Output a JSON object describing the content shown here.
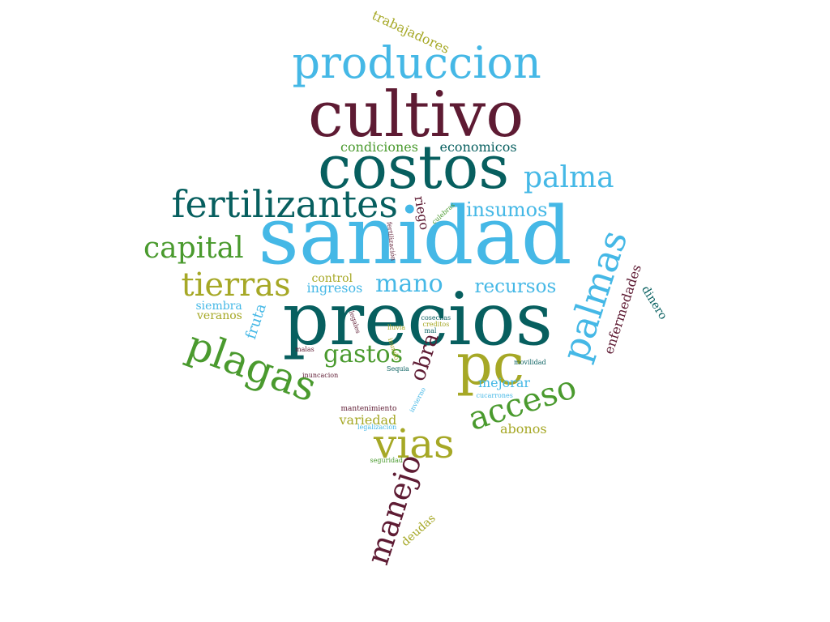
{
  "palette": {
    "sky": "#45b8e6",
    "maroon": "#5e1b33",
    "teal": "#075f5f",
    "green": "#4a9a2e",
    "olive": "#a6a826"
  },
  "words": [
    {
      "text": "sanidad",
      "color": "sky"
    },
    {
      "text": "precios",
      "color": "teal"
    },
    {
      "text": "cultivo",
      "color": "maroon"
    },
    {
      "text": "costos",
      "color": "teal"
    },
    {
      "text": "produccion",
      "color": "sky"
    },
    {
      "text": "pc",
      "color": "olive"
    },
    {
      "text": "palmas",
      "color": "sky"
    },
    {
      "text": "plagas",
      "color": "green"
    },
    {
      "text": "fertilizantes",
      "color": "teal"
    },
    {
      "text": "vias",
      "color": "olive"
    },
    {
      "text": "acceso",
      "color": "green"
    },
    {
      "text": "tierras",
      "color": "olive"
    },
    {
      "text": "palma",
      "color": "sky"
    },
    {
      "text": "manejo",
      "color": "maroon"
    },
    {
      "text": "capital",
      "color": "green"
    },
    {
      "text": "mano",
      "color": "sky"
    },
    {
      "text": "gastos",
      "color": "green"
    },
    {
      "text": "obra",
      "color": "maroon"
    },
    {
      "text": "insumos",
      "color": "sky"
    },
    {
      "text": "recursos",
      "color": "sky"
    },
    {
      "text": "enfermedades",
      "color": "maroon"
    },
    {
      "text": "trabajadores",
      "color": "olive"
    },
    {
      "text": "condiciones",
      "color": "green"
    },
    {
      "text": "economicos",
      "color": "teal"
    },
    {
      "text": "fruta",
      "color": "sky"
    },
    {
      "text": "dinero",
      "color": "teal"
    },
    {
      "text": "riego",
      "color": "maroon"
    },
    {
      "text": "mejorar",
      "color": "sky"
    },
    {
      "text": "variedad",
      "color": "olive"
    },
    {
      "text": "abonos",
      "color": "olive"
    },
    {
      "text": "deudas",
      "color": "olive"
    },
    {
      "text": "ingresos",
      "color": "sky"
    },
    {
      "text": "control",
      "color": "olive"
    },
    {
      "text": "siembra",
      "color": "sky"
    },
    {
      "text": "veranos",
      "color": "olive"
    },
    {
      "text": "culebras",
      "color": "green"
    },
    {
      "text": "fertilización",
      "color": "maroon"
    },
    {
      "text": "legales",
      "color": "maroon"
    },
    {
      "text": "lluvia",
      "color": "olive"
    },
    {
      "text": "cosechas",
      "color": "teal"
    },
    {
      "text": "creditos",
      "color": "olive"
    },
    {
      "text": "mal",
      "color": "teal"
    },
    {
      "text": "inundo",
      "color": "olive"
    },
    {
      "text": "malas",
      "color": "maroon"
    },
    {
      "text": "Sequia",
      "color": "teal"
    },
    {
      "text": "movilidad",
      "color": "teal"
    },
    {
      "text": "inuncacion",
      "color": "maroon"
    },
    {
      "text": "invierno",
      "color": "sky"
    },
    {
      "text": "cucarrones",
      "color": "sky"
    },
    {
      "text": "mantenimiento",
      "color": "maroon"
    },
    {
      "text": "legalización",
      "color": "sky"
    },
    {
      "text": "seguridad",
      "color": "green"
    }
  ]
}
